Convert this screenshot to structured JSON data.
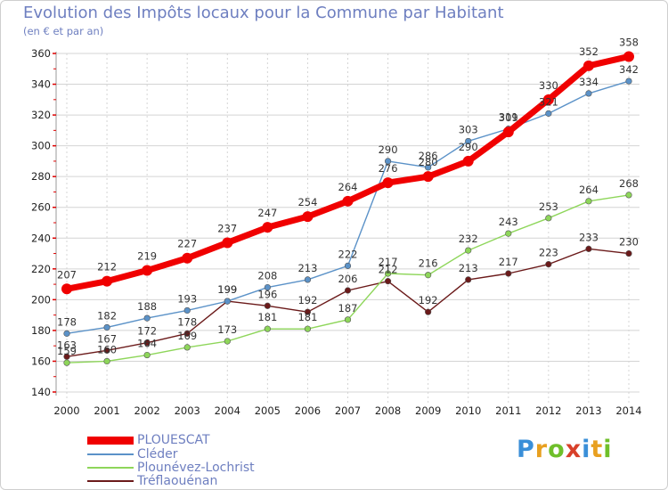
{
  "header": {
    "title": "Evolution des Impôts locaux pour la Commune par Habitant",
    "subtitle": "(en € et par an)"
  },
  "logo": {
    "text": "Proxiti",
    "colors": [
      "#3a8fd8",
      "#e8a020",
      "#6fbf2a",
      "#d8402a",
      "#3a8fd8",
      "#e8a020",
      "#6fbf2a"
    ]
  },
  "chart_data": {
    "type": "line",
    "title": "Evolution des Impôts locaux pour la Commune par Habitant",
    "subtitle": "(en € et par an)",
    "xlabel": "",
    "ylabel": "",
    "ylim": [
      140,
      360
    ],
    "yticks": [
      140,
      160,
      180,
      200,
      220,
      240,
      260,
      280,
      300,
      320,
      340,
      360
    ],
    "categories": [
      "2000",
      "2001",
      "2002",
      "2003",
      "2004",
      "2005",
      "2006",
      "2007",
      "2008",
      "2009",
      "2010",
      "2011",
      "2012",
      "2013",
      "2014"
    ],
    "grid": true,
    "series": [
      {
        "name": "Tréflaouénan",
        "color": "#6b1a1a",
        "values": [
          163,
          167,
          172,
          178,
          199,
          196,
          192,
          206,
          212,
          192,
          213,
          217,
          223,
          233,
          230
        ]
      },
      {
        "name": "Plounévez-Lochrist",
        "color": "#8ed65a",
        "values": [
          159,
          160,
          164,
          169,
          173,
          181,
          181,
          187,
          217,
          216,
          232,
          243,
          253,
          264,
          268
        ]
      },
      {
        "name": "Cléder",
        "color": "#5b92c8",
        "values": [
          178,
          182,
          188,
          193,
          199,
          208,
          213,
          222,
          290,
          286,
          303,
          311,
          321,
          334,
          342
        ]
      },
      {
        "name": "PLOUESCAT",
        "color": "#f00000",
        "values": [
          207,
          212,
          219,
          227,
          237,
          247,
          254,
          264,
          276,
          280,
          290,
          309,
          330,
          352,
          358
        ]
      }
    ],
    "legend": {
      "position": "bottom-left",
      "entries": [
        "PLOUESCAT",
        "Cléder",
        "Plounévez-Lochrist",
        "Tréflaouénan"
      ]
    }
  }
}
